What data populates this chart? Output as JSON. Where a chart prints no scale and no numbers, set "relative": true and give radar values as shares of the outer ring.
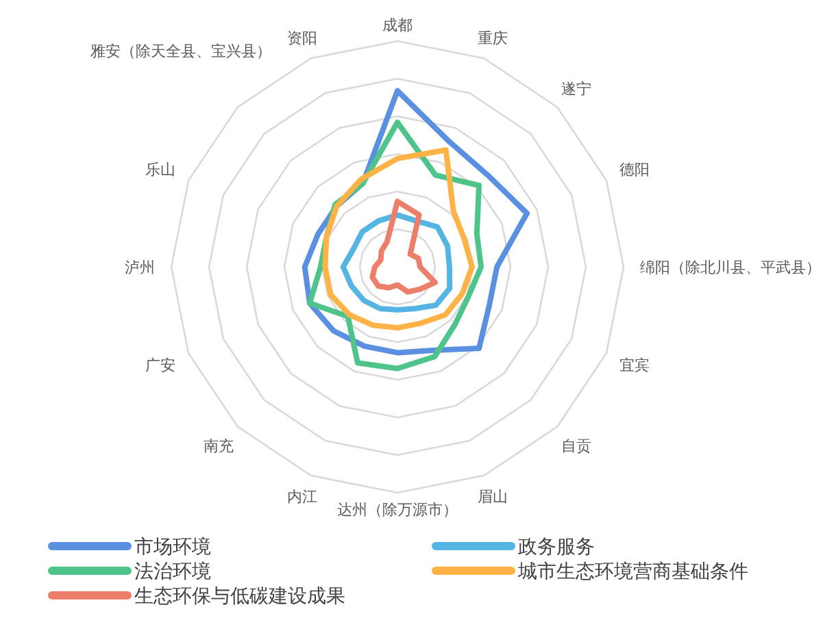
{
  "chart_data": {
    "type": "radar",
    "relative": true,
    "grid": true,
    "legend": "bottom",
    "categories": [
      "成都",
      "重庆",
      "遂宁",
      "德阳",
      "绵阳（除北川县、平武县）",
      "宜宾",
      "自贡",
      "眉山",
      "达州（除万源市）",
      "内江",
      "南充",
      "广安",
      "泸州",
      "乐山",
      "雅安（除天全县、宝兴县）",
      "资阳"
    ],
    "series": [
      {
        "name": "市场环境",
        "color": "#5b8fe0",
        "values": [
          0.78,
          0.6,
          0.57,
          0.62,
          0.44,
          0.44,
          0.51,
          0.4,
          0.38,
          0.38,
          0.4,
          0.42,
          0.41,
          0.38,
          0.38,
          0.4
        ]
      },
      {
        "name": "政务服务",
        "color": "#56b4e3",
        "values": [
          0.23,
          0.22,
          0.25,
          0.24,
          0.23,
          0.25,
          0.24,
          0.2,
          0.19,
          0.2,
          0.21,
          0.22,
          0.24,
          0.21,
          0.22,
          0.22
        ]
      },
      {
        "name": "法治环境",
        "color": "#4ec48b",
        "values": [
          0.64,
          0.44,
          0.51,
          0.38,
          0.37,
          0.34,
          0.36,
          0.43,
          0.45,
          0.46,
          0.31,
          0.42,
          0.34,
          0.34,
          0.39,
          0.4
        ]
      },
      {
        "name": "城市生态环境营商基础条件",
        "color": "#ffb347",
        "values": [
          0.48,
          0.56,
          0.35,
          0.32,
          0.33,
          0.31,
          0.3,
          0.27,
          0.27,
          0.28,
          0.3,
          0.32,
          0.32,
          0.34,
          0.38,
          0.42
        ]
      },
      {
        "name": "生态环保与低碳建设成果",
        "color": "#ed7f6a",
        "values": [
          0.29,
          0.25,
          0.08,
          0.1,
          0.1,
          0.18,
          0.14,
          0.12,
          0.08,
          0.1,
          0.12,
          0.12,
          0.1,
          0.08,
          0.1,
          0.12
        ]
      }
    ]
  }
}
